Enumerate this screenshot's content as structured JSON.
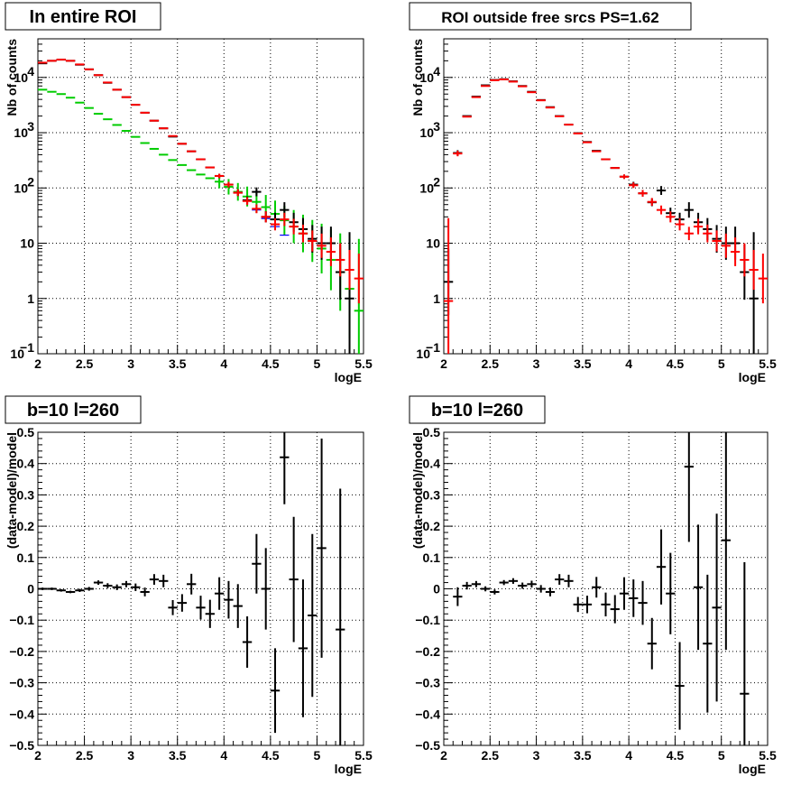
{
  "chart_data": [
    {
      "type": "scatter",
      "title": "In entire ROI",
      "xlabel": "logE",
      "ylabel": "Nb of counts",
      "xlim": [
        2,
        5.5
      ],
      "ylim": [
        0.1,
        50000
      ],
      "yscale": "log",
      "grid": true,
      "xticks": [
        "2",
        "2.5",
        "3",
        "3.5",
        "4",
        "4.5",
        "5",
        "5.5"
      ],
      "yticks": [
        {
          "v": 0.1,
          "label": "10",
          "sup": "−1"
        },
        {
          "v": 1,
          "label": "1",
          "sup": ""
        },
        {
          "v": 10,
          "label": "10",
          "sup": ""
        },
        {
          "v": 100,
          "label": "10",
          "sup": "2"
        },
        {
          "v": 1000,
          "label": "10",
          "sup": "3"
        },
        {
          "v": 10000,
          "label": "10",
          "sup": "4"
        }
      ],
      "series": [
        {
          "color": "#0000ff",
          "style": "step",
          "x": [
            2.05,
            2.15,
            2.25,
            2.35,
            2.45,
            2.55,
            2.65,
            2.75,
            2.85,
            2.95,
            3.05,
            3.15,
            3.25,
            3.35,
            3.45,
            3.55,
            3.65,
            3.75,
            3.85,
            3.95,
            4.05,
            4.15,
            4.25,
            4.35,
            4.45,
            4.55,
            4.65
          ],
          "y": [
            18000,
            20000,
            21000,
            20000,
            17000,
            14000,
            11000,
            8000,
            6000,
            4400,
            3200,
            2300,
            1650,
            1200,
            850,
            630,
            460,
            330,
            235,
            165,
            115,
            82,
            58,
            40,
            28,
            20,
            14
          ]
        },
        {
          "color": "#00cc00",
          "style": "err",
          "x": [
            2.05,
            2.15,
            2.25,
            2.35,
            2.45,
            2.55,
            2.65,
            2.75,
            2.85,
            2.95,
            3.05,
            3.15,
            3.25,
            3.35,
            3.45,
            3.55,
            3.65,
            3.75,
            3.85,
            3.95,
            4.05,
            4.15,
            4.25,
            4.35,
            4.45,
            4.55,
            4.65,
            4.75,
            4.85,
            4.95,
            5.05,
            5.15,
            5.25,
            5.35,
            5.45
          ],
          "y": [
            6000,
            5500,
            5000,
            4300,
            3500,
            2800,
            2200,
            1750,
            1380,
            1080,
            840,
            650,
            510,
            400,
            320,
            260,
            210,
            175,
            150,
            130,
            105,
            85,
            70,
            56,
            45,
            34,
            26,
            20,
            15,
            11,
            8,
            5,
            3,
            1.5,
            0.6
          ],
          "err": [
            0,
            0,
            0,
            0,
            0,
            0,
            0,
            0,
            0,
            0,
            0,
            0,
            0,
            0,
            0,
            0,
            0,
            0,
            0,
            0.12,
            0.14,
            0.16,
            0.18,
            0.2,
            0.22,
            0.24,
            0.26,
            0.3,
            0.34,
            0.38,
            0.45,
            0.55,
            0.7,
            0.9,
            1.3
          ]
        },
        {
          "color": "#000000",
          "style": "err",
          "x": [
            2.05,
            2.15,
            2.25,
            2.35,
            2.45,
            2.55,
            2.65,
            2.75,
            2.85,
            2.95,
            3.05,
            3.15,
            3.25,
            3.35,
            3.45,
            3.55,
            3.65,
            3.75,
            3.85,
            3.95,
            4.05,
            4.15,
            4.25,
            4.35,
            4.45,
            4.55,
            4.65,
            4.75,
            4.85,
            4.95,
            5.05,
            5.15,
            5.25,
            5.35
          ],
          "y": [
            18000,
            20000,
            21000,
            20000,
            17000,
            14000,
            11000,
            8000,
            6000,
            4400,
            3200,
            2300,
            1650,
            1200,
            850,
            630,
            460,
            330,
            235,
            165,
            115,
            82,
            60,
            85,
            30,
            27,
            40,
            24,
            18,
            12,
            10,
            10,
            3,
            1
          ],
          "err": [
            0,
            0,
            0,
            0,
            0,
            0,
            0,
            0,
            0,
            0,
            0,
            0,
            0,
            0,
            0,
            0,
            0,
            0,
            0,
            0.04,
            0.05,
            0.06,
            0.07,
            0.08,
            0.1,
            0.12,
            0.14,
            0.17,
            0.2,
            0.25,
            0.3,
            0.3,
            0.5,
            1.2
          ]
        },
        {
          "color": "#ff0000",
          "style": "err",
          "x": [
            2.05,
            2.15,
            2.25,
            2.35,
            2.45,
            2.55,
            2.65,
            2.75,
            2.85,
            2.95,
            3.05,
            3.15,
            3.25,
            3.35,
            3.45,
            3.55,
            3.65,
            3.75,
            3.85,
            3.95,
            4.05,
            4.15,
            4.25,
            4.35,
            4.45,
            4.55,
            4.65,
            4.75,
            4.85,
            4.95,
            5.05,
            5.15,
            5.25,
            5.35,
            5.45
          ],
          "y": [
            18500,
            20000,
            21000,
            20000,
            17200,
            14000,
            11000,
            8100,
            6000,
            4400,
            3200,
            2300,
            1650,
            1200,
            870,
            630,
            460,
            330,
            235,
            165,
            115,
            82,
            58,
            42,
            30,
            22,
            27,
            20,
            15,
            11,
            9,
            7,
            5,
            3.3,
            2.3
          ],
          "err": [
            0,
            0,
            0,
            0,
            0,
            0,
            0,
            0,
            0,
            0,
            0,
            0,
            0,
            0,
            0,
            0,
            0,
            0,
            0,
            0.04,
            0.05,
            0.06,
            0.07,
            0.08,
            0.1,
            0.11,
            0.12,
            0.14,
            0.16,
            0.19,
            0.22,
            0.26,
            0.3,
            0.36,
            0.45
          ]
        }
      ]
    },
    {
      "type": "scatter",
      "title": "ROI outside free srcs PS=1.62",
      "xlabel": "logE",
      "ylabel": "Nb of counts",
      "xlim": [
        2,
        5.5
      ],
      "ylim": [
        0.1,
        50000
      ],
      "yscale": "log",
      "grid": true,
      "xticks": [
        "2",
        "2.5",
        "3",
        "3.5",
        "4",
        "4.5",
        "5",
        "5.5"
      ],
      "yticks": [
        {
          "v": 0.1,
          "label": "10",
          "sup": "−1"
        },
        {
          "v": 1,
          "label": "1",
          "sup": ""
        },
        {
          "v": 10,
          "label": "10",
          "sup": ""
        },
        {
          "v": 100,
          "label": "10",
          "sup": "2"
        },
        {
          "v": 1000,
          "label": "10",
          "sup": "3"
        },
        {
          "v": 10000,
          "label": "10",
          "sup": "4"
        }
      ],
      "series": [
        {
          "color": "#000000",
          "style": "err",
          "x": [
            2.05,
            2.15,
            2.25,
            2.35,
            2.45,
            2.55,
            2.65,
            2.75,
            2.85,
            2.95,
            3.05,
            3.15,
            3.25,
            3.35,
            3.45,
            3.55,
            3.65,
            3.75,
            3.85,
            3.95,
            4.05,
            4.15,
            4.25,
            4.35,
            4.45,
            4.55,
            4.65,
            4.75,
            4.85,
            4.95,
            5.05,
            5.15,
            5.25,
            5.35
          ],
          "y": [
            2,
            430,
            2000,
            4500,
            7200,
            9000,
            9300,
            8500,
            7000,
            5500,
            3900,
            2900,
            2000,
            1400,
            980,
            680,
            470,
            330,
            230,
            160,
            115,
            80,
            55,
            90,
            35,
            27,
            40,
            24,
            18,
            12,
            10,
            10,
            3,
            1
          ],
          "err": [
            0.6,
            0.05,
            0,
            0,
            0,
            0,
            0,
            0,
            0,
            0,
            0,
            0,
            0,
            0,
            0,
            0,
            0,
            0,
            0,
            0.04,
            0.05,
            0.06,
            0.07,
            0.08,
            0.1,
            0.12,
            0.14,
            0.17,
            0.2,
            0.25,
            0.3,
            0.3,
            0.5,
            1.2
          ]
        },
        {
          "color": "#ff0000",
          "style": "err",
          "x": [
            2.05,
            2.15,
            2.25,
            2.35,
            2.45,
            2.55,
            2.65,
            2.75,
            2.85,
            2.95,
            3.05,
            3.15,
            3.25,
            3.35,
            3.45,
            3.55,
            3.65,
            3.75,
            3.85,
            3.95,
            4.05,
            4.15,
            4.25,
            4.35,
            4.45,
            4.55,
            4.65,
            4.75,
            4.85,
            4.95,
            5.05,
            5.15,
            5.25,
            5.35,
            5.45
          ],
          "y": [
            0.9,
            420,
            1950,
            4400,
            7000,
            8900,
            9200,
            8400,
            6900,
            5400,
            3850,
            2850,
            1980,
            1400,
            970,
            670,
            460,
            330,
            230,
            160,
            112,
            80,
            56,
            40,
            30,
            22,
            15,
            20,
            15,
            11,
            9,
            7,
            5,
            3.3,
            2.3
          ],
          "err": [
            1.5,
            0.05,
            0,
            0,
            0,
            0,
            0,
            0,
            0,
            0,
            0,
            0,
            0,
            0,
            0,
            0,
            0,
            0,
            0,
            0.04,
            0.05,
            0.06,
            0.07,
            0.08,
            0.1,
            0.11,
            0.12,
            0.14,
            0.16,
            0.19,
            0.22,
            0.26,
            0.3,
            0.36,
            0.45
          ]
        }
      ]
    },
    {
      "type": "scatter",
      "title": "b=10 l=260",
      "xlabel": "logE",
      "ylabel": "(data-model)/model",
      "xlim": [
        2,
        5.5
      ],
      "ylim": [
        -0.5,
        0.5
      ],
      "yscale": "linear",
      "grid": true,
      "xticks": [
        "2",
        "2.5",
        "3",
        "3.5",
        "4",
        "4.5",
        "5",
        "5.5"
      ],
      "yticks": [
        {
          "v": -0.5,
          "label": "−0.5",
          "sup": ""
        },
        {
          "v": -0.4,
          "label": "−0.4",
          "sup": ""
        },
        {
          "v": -0.3,
          "label": "−0.3",
          "sup": ""
        },
        {
          "v": -0.2,
          "label": "−0.2",
          "sup": ""
        },
        {
          "v": -0.1,
          "label": "−0.1",
          "sup": ""
        },
        {
          "v": 0,
          "label": "0",
          "sup": ""
        },
        {
          "v": 0.1,
          "label": "0.1",
          "sup": ""
        },
        {
          "v": 0.2,
          "label": "0.2",
          "sup": ""
        },
        {
          "v": 0.3,
          "label": "0.3",
          "sup": ""
        },
        {
          "v": 0.4,
          "label": "0.4",
          "sup": ""
        },
        {
          "v": 0.5,
          "label": "0.5",
          "sup": ""
        }
      ],
      "series": [
        {
          "color": "#000000",
          "style": "err",
          "x": [
            2.05,
            2.15,
            2.25,
            2.35,
            2.45,
            2.55,
            2.65,
            2.75,
            2.85,
            2.95,
            3.05,
            3.15,
            3.25,
            3.35,
            3.45,
            3.55,
            3.65,
            3.75,
            3.85,
            3.95,
            4.05,
            4.15,
            4.25,
            4.35,
            4.45,
            4.55,
            4.65,
            4.75,
            4.85,
            4.95,
            5.05,
            5.25
          ],
          "y": [
            0,
            0,
            -0.005,
            -0.01,
            -0.005,
            0,
            0.02,
            0.01,
            0.005,
            0.015,
            0.005,
            -0.01,
            0.03,
            0.025,
            -0.06,
            -0.045,
            0.015,
            -0.06,
            -0.08,
            -0.015,
            -0.035,
            -0.055,
            -0.17,
            0.08,
            0,
            -0.325,
            0.42,
            0.03,
            -0.19,
            -0.085,
            0.13,
            -0.13
          ],
          "err": [
            0.004,
            0.004,
            0.004,
            0.004,
            0.005,
            0.006,
            0.007,
            0.008,
            0.009,
            0.01,
            0.012,
            0.014,
            0.017,
            0.02,
            0.024,
            0.028,
            0.033,
            0.038,
            0.045,
            0.052,
            0.06,
            0.07,
            0.082,
            0.095,
            0.13,
            0.135,
            0.15,
            0.2,
            0.22,
            0.26,
            0.35,
            0.45
          ]
        }
      ]
    },
    {
      "type": "scatter",
      "title": "b=10 l=260",
      "xlabel": "logE",
      "ylabel": "(data-model)/model",
      "xlim": [
        2,
        5.5
      ],
      "ylim": [
        -0.5,
        0.5
      ],
      "yscale": "linear",
      "grid": true,
      "xticks": [
        "2",
        "2.5",
        "3",
        "3.5",
        "4",
        "4.5",
        "5",
        "5.5"
      ],
      "yticks": [
        {
          "v": -0.5,
          "label": "−0.5",
          "sup": ""
        },
        {
          "v": -0.4,
          "label": "−0.4",
          "sup": ""
        },
        {
          "v": -0.3,
          "label": "−0.3",
          "sup": ""
        },
        {
          "v": -0.2,
          "label": "−0.2",
          "sup": ""
        },
        {
          "v": -0.1,
          "label": "−0.1",
          "sup": ""
        },
        {
          "v": 0,
          "label": "0",
          "sup": ""
        },
        {
          "v": 0.1,
          "label": "0.1",
          "sup": ""
        },
        {
          "v": 0.2,
          "label": "0.2",
          "sup": ""
        },
        {
          "v": 0.3,
          "label": "0.3",
          "sup": ""
        },
        {
          "v": 0.4,
          "label": "0.4",
          "sup": ""
        },
        {
          "v": 0.5,
          "label": "0.5",
          "sup": ""
        }
      ],
      "series": [
        {
          "color": "#000000",
          "style": "err",
          "x": [
            2.15,
            2.25,
            2.35,
            2.45,
            2.55,
            2.65,
            2.75,
            2.85,
            2.95,
            3.05,
            3.15,
            3.25,
            3.35,
            3.45,
            3.55,
            3.65,
            3.75,
            3.85,
            3.95,
            4.05,
            4.15,
            4.25,
            4.35,
            4.45,
            4.55,
            4.65,
            4.75,
            4.85,
            4.95,
            5.05,
            5.25
          ],
          "y": [
            -0.025,
            0.01,
            0.015,
            0,
            -0.01,
            0.02,
            0.025,
            0.01,
            0.015,
            0,
            -0.01,
            0.03,
            0.025,
            -0.05,
            -0.05,
            0.005,
            -0.05,
            -0.065,
            -0.015,
            -0.03,
            -0.045,
            -0.175,
            0.07,
            -0.015,
            -0.31,
            0.39,
            0.005,
            -0.175,
            -0.06,
            0.155,
            -0.335
          ],
          "err": [
            0.03,
            0.012,
            0.01,
            0.008,
            0.008,
            0.008,
            0.009,
            0.01,
            0.011,
            0.012,
            0.014,
            0.017,
            0.02,
            0.024,
            0.028,
            0.033,
            0.038,
            0.045,
            0.052,
            0.06,
            0.07,
            0.082,
            0.12,
            0.13,
            0.14,
            0.24,
            0.2,
            0.22,
            0.3,
            0.35,
            0.42
          ]
        }
      ]
    }
  ]
}
